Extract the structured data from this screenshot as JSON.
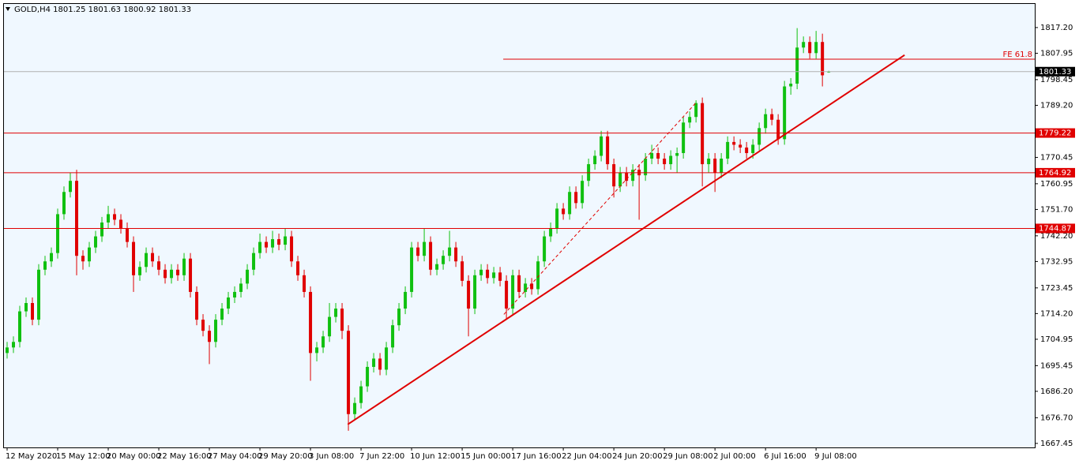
{
  "chart_data": {
    "type": "candlestick",
    "title": "GOLD,H4  1801.25 1801.63 1800.92 1801.33",
    "bull_color": "#10c010",
    "bear_color": "#e00000",
    "open": [
      1700,
      1702,
      1704,
      1715,
      1718,
      1712,
      1730,
      1733,
      1736,
      1750,
      1758,
      1762,
      1735,
      1733,
      1738,
      1742,
      1747,
      1750,
      1748,
      1745,
      1740,
      1728,
      1731,
      1736,
      1733,
      1730,
      1727,
      1730,
      1728,
      1734,
      1722,
      1712,
      1708,
      1704,
      1712,
      1716,
      1720,
      1722,
      1725,
      1730,
      1736,
      1740,
      1738,
      1741,
      1739,
      1742,
      1733,
      1728,
      1722,
      1700,
      1702,
      1706,
      1713,
      1716,
      1708,
      1678,
      1682,
      1688,
      1695,
      1698,
      1694,
      1702,
      1710,
      1716,
      1722,
      1738,
      1735,
      1740,
      1730,
      1732,
      1735,
      1738,
      1733,
      1726,
      1716,
      1728,
      1730,
      1727,
      1729,
      1726,
      1716,
      1728,
      1722,
      1725,
      1723,
      1733,
      1742,
      1745,
      1752,
      1750,
      1758,
      1754,
      1762,
      1768,
      1771,
      1778,
      1768,
      1760,
      1765,
      1762,
      1766,
      1764,
      1770,
      1772,
      1770,
      1768,
      1771,
      1772,
      1783,
      1785,
      1790,
      1768,
      1770,
      1765,
      1770,
      1776,
      1775,
      1774,
      1772,
      1775,
      1781,
      1786,
      1784,
      1777,
      1796,
      1797,
      1810,
      1812,
      1808,
      1812,
      1801.25
    ],
    "high": [
      1704,
      1706,
      1717,
      1720,
      1720,
      1732,
      1735,
      1738,
      1752,
      1760,
      1765,
      1766,
      1737,
      1740,
      1744,
      1749,
      1753,
      1752,
      1750,
      1747,
      1742,
      1733,
      1738,
      1738,
      1735,
      1732,
      1732,
      1732,
      1736,
      1736,
      1724,
      1714,
      1710,
      1714,
      1718,
      1722,
      1724,
      1727,
      1732,
      1738,
      1743,
      1742,
      1744,
      1743,
      1745,
      1744,
      1735,
      1730,
      1724,
      1704,
      1708,
      1718,
      1718,
      1718,
      1710,
      1684,
      1690,
      1697,
      1700,
      1700,
      1704,
      1712,
      1718,
      1724,
      1740,
      1740,
      1745,
      1742,
      1734,
      1737,
      1744,
      1740,
      1735,
      1728,
      1730,
      1732,
      1732,
      1731,
      1731,
      1728,
      1730,
      1730,
      1727,
      1727,
      1735,
      1744,
      1747,
      1754,
      1754,
      1760,
      1760,
      1764,
      1770,
      1773,
      1780,
      1780,
      1770,
      1767,
      1767,
      1768,
      1768,
      1772,
      1775,
      1774,
      1772,
      1773,
      1774,
      1785,
      1787,
      1791,
      1792,
      1772,
      1772,
      1772,
      1778,
      1778,
      1777,
      1776,
      1777,
      1783,
      1788,
      1788,
      1786,
      1798,
      1799,
      1817,
      1814,
      1814,
      1816,
      1815,
      1801.63
    ],
    "low": [
      1698,
      1700,
      1702,
      1713,
      1710,
      1710,
      1728,
      1731,
      1734,
      1748,
      1756,
      1728,
      1730,
      1731,
      1736,
      1740,
      1745,
      1746,
      1743,
      1738,
      1722,
      1726,
      1729,
      1731,
      1728,
      1725,
      1725,
      1726,
      1726,
      1720,
      1710,
      1706,
      1696,
      1702,
      1710,
      1714,
      1718,
      1720,
      1723,
      1728,
      1734,
      1736,
      1736,
      1737,
      1737,
      1731,
      1726,
      1720,
      1690,
      1697,
      1700,
      1704,
      1711,
      1705,
      1672,
      1676,
      1680,
      1686,
      1693,
      1692,
      1692,
      1700,
      1708,
      1714,
      1720,
      1733,
      1733,
      1728,
      1728,
      1730,
      1733,
      1731,
      1724,
      1706,
      1714,
      1726,
      1725,
      1725,
      1724,
      1712,
      1714,
      1720,
      1720,
      1721,
      1721,
      1731,
      1740,
      1743,
      1748,
      1748,
      1752,
      1752,
      1760,
      1766,
      1769,
      1766,
      1756,
      1758,
      1760,
      1760,
      1748,
      1762,
      1768,
      1768,
      1766,
      1766,
      1765,
      1770,
      1781,
      1783,
      1760,
      1765,
      1758,
      1763,
      1768,
      1773,
      1772,
      1770,
      1770,
      1773,
      1779,
      1782,
      1775,
      1775,
      1793,
      1795,
      1808,
      1806,
      1806,
      1796,
      1800.92
    ],
    "close": [
      1702,
      1704,
      1715,
      1718,
      1712,
      1730,
      1733,
      1736,
      1750,
      1758,
      1762,
      1735,
      1733,
      1738,
      1742,
      1747,
      1750,
      1748,
      1745,
      1740,
      1728,
      1731,
      1736,
      1733,
      1730,
      1727,
      1730,
      1728,
      1734,
      1722,
      1712,
      1708,
      1704,
      1712,
      1716,
      1720,
      1722,
      1725,
      1730,
      1736,
      1740,
      1738,
      1741,
      1739,
      1742,
      1733,
      1728,
      1722,
      1700,
      1702,
      1706,
      1713,
      1716,
      1708,
      1678,
      1682,
      1688,
      1695,
      1698,
      1694,
      1702,
      1710,
      1716,
      1722,
      1738,
      1735,
      1740,
      1730,
      1732,
      1735,
      1738,
      1733,
      1726,
      1716,
      1728,
      1730,
      1727,
      1729,
      1726,
      1716,
      1728,
      1722,
      1725,
      1723,
      1733,
      1742,
      1745,
      1752,
      1750,
      1758,
      1754,
      1762,
      1768,
      1771,
      1778,
      1768,
      1760,
      1765,
      1762,
      1766,
      1764,
      1770,
      1772,
      1770,
      1768,
      1771,
      1772,
      1783,
      1785,
      1790,
      1768,
      1770,
      1765,
      1770,
      1776,
      1775,
      1774,
      1772,
      1775,
      1781,
      1786,
      1784,
      1777,
      1796,
      1797,
      1810,
      1812,
      1808,
      1812,
      1800,
      1801.33
    ],
    "xlim": [
      -0.5,
      162.6
    ],
    "ylim": [
      1666.0,
      1825.7
    ],
    "xticks": [
      {
        "value": 0,
        "label": "12 May 2020"
      },
      {
        "value": 8,
        "label": "15 May 12:00"
      },
      {
        "value": 16,
        "label": "20 May 00:00"
      },
      {
        "value": 24,
        "label": "22 May 16:00"
      },
      {
        "value": 32,
        "label": "27 May 04:00"
      },
      {
        "value": 40,
        "label": "29 May 20:00"
      },
      {
        "value": 48,
        "label": "3 Jun 08:00"
      },
      {
        "value": 56,
        "label": "7 Jun 22:00"
      },
      {
        "value": 64,
        "label": "10 Jun 12:00"
      },
      {
        "value": 72,
        "label": "15 Jun 00:00"
      },
      {
        "value": 80,
        "label": "17 Jun 16:00"
      },
      {
        "value": 88,
        "label": "22 Jun 04:00"
      },
      {
        "value": 96,
        "label": "24 Jun 20:00"
      },
      {
        "value": 104,
        "label": "29 Jun 08:00"
      },
      {
        "value": 112,
        "label": "2 Jul 00:00"
      },
      {
        "value": 120,
        "label": "6 Jul 16:00"
      },
      {
        "value": 128,
        "label": "9 Jul 08:00"
      }
    ],
    "yticks": [
      {
        "value": 1817.2,
        "label": "1817.20"
      },
      1807.95,
      1798.45,
      {
        "value": 1789.2,
        "label": "1789.20"
      },
      1770.45,
      1760.95,
      {
        "value": 1751.7,
        "label": "1751.70"
      },
      {
        "value": 1742.2,
        "label": "1742.20"
      },
      1732.95,
      1723.45,
      {
        "value": 1714.2,
        "label": "1714.20"
      },
      1704.95,
      1695.45,
      {
        "value": 1686.2,
        "label": "1686.20"
      },
      {
        "value": 1676.7,
        "label": "1676.70"
      },
      1667.45
    ],
    "levels": [
      1779.22,
      1764.92,
      1744.87
    ],
    "level_color": "#e00000",
    "current_price": 1801.33,
    "fe_line": {
      "label": "FE 61.8",
      "value": 1805.8,
      "x": [
        78.5,
        162.6
      ]
    },
    "trendlines": [
      {
        "x": [
          53.9,
          142.0
        ],
        "y": [
          1674.3,
          1807.3
        ],
        "style": "solid"
      },
      {
        "x": [
          78.6,
          109.1
        ],
        "y": [
          1713.9,
          1790.4
        ],
        "style": "dashed"
      }
    ]
  }
}
